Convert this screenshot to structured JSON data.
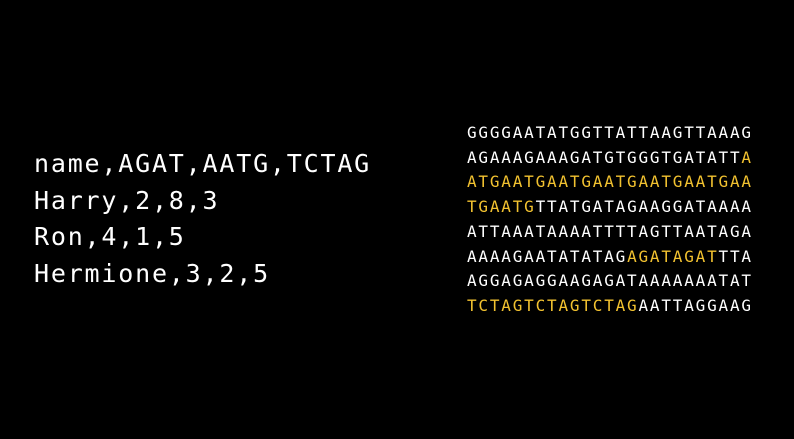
{
  "csv": {
    "lines": [
      "name,AGAT,AATG,TCTAG",
      "Harry,2,8,3",
      "Ron,4,1,5",
      "Hermione,3,2,5"
    ]
  },
  "dna": {
    "highlight_color": "#f2c230",
    "color": "#ffffff",
    "lines": [
      {
        "segments": [
          {
            "text": "GGGGAATATGGTTATTAAGTTAAAG",
            "highlight": false
          }
        ]
      },
      {
        "segments": [
          {
            "text": "AGAAAGAAAGATGTGGGTGATATT",
            "highlight": false
          },
          {
            "text": "A",
            "highlight": true
          }
        ]
      },
      {
        "segments": [
          {
            "text": "ATGAATGAATGAATGAATGAATGAA",
            "highlight": true
          }
        ]
      },
      {
        "segments": [
          {
            "text": "TGAATG",
            "highlight": true
          },
          {
            "text": "TTATGATAGAAGGATAAAA",
            "highlight": false
          }
        ]
      },
      {
        "segments": [
          {
            "text": "ATTAAATAAAATTTTAGTTAATAGA",
            "highlight": false
          }
        ]
      },
      {
        "segments": [
          {
            "text": "AAAAGAATATATAG",
            "highlight": false
          },
          {
            "text": "AGATAGAT",
            "highlight": true
          },
          {
            "text": "TTA",
            "highlight": false
          }
        ]
      },
      {
        "segments": [
          {
            "text": "AGGAGAGGAAGAGATAAAAAAATAT",
            "highlight": false
          }
        ]
      },
      {
        "segments": [
          {
            "text": "TCTAGTCTAGTCTAG",
            "highlight": true
          },
          {
            "text": "AATTAGGAAG",
            "highlight": false
          }
        ]
      }
    ]
  }
}
